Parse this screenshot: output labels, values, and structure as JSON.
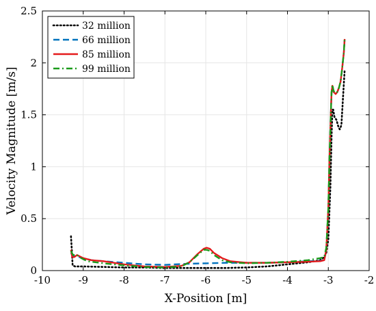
{
  "chart_data": {
    "type": "line",
    "xlabel": "X-Position [m]",
    "ylabel": "Velocity Magnitude [m/s]",
    "xlim": [
      -10,
      -2
    ],
    "ylim": [
      0,
      2.5
    ],
    "xticks": [
      -10,
      -9,
      -8,
      -7,
      -6,
      -5,
      -4,
      -3,
      -2
    ],
    "yticks": [
      0,
      0.5,
      1,
      1.5,
      2,
      2.5
    ],
    "grid": true,
    "legend_position": "top-left",
    "series": [
      {
        "name": "32 million",
        "color": "#000000",
        "style": "dotted",
        "points": [
          [
            -9.3,
            0.33
          ],
          [
            -9.28,
            0.2
          ],
          [
            -9.26,
            0.05
          ],
          [
            -9.2,
            0.04
          ],
          [
            -9.0,
            0.04
          ],
          [
            -8.5,
            0.035
          ],
          [
            -8.0,
            0.03
          ],
          [
            -7.5,
            0.03
          ],
          [
            -7.0,
            0.025
          ],
          [
            -6.5,
            0.025
          ],
          [
            -6.0,
            0.025
          ],
          [
            -5.5,
            0.025
          ],
          [
            -5.0,
            0.03
          ],
          [
            -4.5,
            0.04
          ],
          [
            -4.0,
            0.06
          ],
          [
            -3.5,
            0.08
          ],
          [
            -3.2,
            0.1
          ],
          [
            -3.1,
            0.13
          ],
          [
            -3.05,
            0.17
          ],
          [
            -3.0,
            0.3
          ],
          [
            -2.95,
            0.8
          ],
          [
            -2.92,
            1.3
          ],
          [
            -2.9,
            1.55
          ],
          [
            -2.88,
            1.55
          ],
          [
            -2.85,
            1.48
          ],
          [
            -2.8,
            1.45
          ],
          [
            -2.75,
            1.38
          ],
          [
            -2.72,
            1.36
          ],
          [
            -2.68,
            1.4
          ],
          [
            -2.65,
            1.6
          ],
          [
            -2.62,
            1.8
          ],
          [
            -2.6,
            1.93
          ]
        ]
      },
      {
        "name": "66 million",
        "color": "#0072bd",
        "style": "dashed",
        "points": [
          [
            -9.3,
            0.17
          ],
          [
            -9.25,
            0.14
          ],
          [
            -9.2,
            0.14
          ],
          [
            -9.1,
            0.13
          ],
          [
            -9.0,
            0.12
          ],
          [
            -8.8,
            0.1
          ],
          [
            -8.5,
            0.09
          ],
          [
            -8.0,
            0.075
          ],
          [
            -7.5,
            0.06
          ],
          [
            -7.0,
            0.055
          ],
          [
            -6.5,
            0.065
          ],
          [
            -6.0,
            0.07
          ],
          [
            -5.5,
            0.075
          ],
          [
            -5.0,
            0.075
          ],
          [
            -4.5,
            0.075
          ],
          [
            -4.0,
            0.08
          ],
          [
            -3.5,
            0.09
          ],
          [
            -3.2,
            0.095
          ],
          [
            -3.1,
            0.1
          ],
          [
            -3.05,
            0.2
          ],
          [
            -3.0,
            0.6
          ],
          [
            -2.97,
            1.1
          ],
          [
            -2.94,
            1.5
          ],
          [
            -2.92,
            1.72
          ],
          [
            -2.9,
            1.78
          ],
          [
            -2.87,
            1.72
          ],
          [
            -2.82,
            1.7
          ],
          [
            -2.78,
            1.72
          ],
          [
            -2.74,
            1.76
          ],
          [
            -2.7,
            1.82
          ],
          [
            -2.66,
            1.95
          ],
          [
            -2.62,
            2.1
          ],
          [
            -2.6,
            2.23
          ]
        ]
      },
      {
        "name": "85 million",
        "color": "#e41a1c",
        "style": "solid",
        "points": [
          [
            -9.3,
            0.2
          ],
          [
            -9.27,
            0.13
          ],
          [
            -9.22,
            0.13
          ],
          [
            -9.15,
            0.15
          ],
          [
            -9.1,
            0.14
          ],
          [
            -9.0,
            0.12
          ],
          [
            -8.8,
            0.1
          ],
          [
            -8.5,
            0.09
          ],
          [
            -8.0,
            0.06
          ],
          [
            -7.5,
            0.04
          ],
          [
            -7.0,
            0.035
          ],
          [
            -6.6,
            0.045
          ],
          [
            -6.4,
            0.08
          ],
          [
            -6.2,
            0.16
          ],
          [
            -6.05,
            0.21
          ],
          [
            -5.98,
            0.22
          ],
          [
            -5.9,
            0.21
          ],
          [
            -5.8,
            0.17
          ],
          [
            -5.6,
            0.12
          ],
          [
            -5.4,
            0.09
          ],
          [
            -5.0,
            0.075
          ],
          [
            -4.5,
            0.075
          ],
          [
            -4.0,
            0.08
          ],
          [
            -3.5,
            0.085
          ],
          [
            -3.2,
            0.09
          ],
          [
            -3.1,
            0.1
          ],
          [
            -3.05,
            0.2
          ],
          [
            -3.0,
            0.6
          ],
          [
            -2.97,
            1.1
          ],
          [
            -2.94,
            1.5
          ],
          [
            -2.92,
            1.72
          ],
          [
            -2.9,
            1.78
          ],
          [
            -2.87,
            1.72
          ],
          [
            -2.82,
            1.7
          ],
          [
            -2.78,
            1.72
          ],
          [
            -2.74,
            1.76
          ],
          [
            -2.7,
            1.82
          ],
          [
            -2.66,
            1.95
          ],
          [
            -2.62,
            2.1
          ],
          [
            -2.6,
            2.23
          ]
        ]
      },
      {
        "name": "99 million",
        "color": "#1a9a1a",
        "style": "dashdot",
        "points": [
          [
            -9.3,
            0.19
          ],
          [
            -9.25,
            0.15
          ],
          [
            -9.15,
            0.15
          ],
          [
            -9.05,
            0.12
          ],
          [
            -8.9,
            0.09
          ],
          [
            -8.5,
            0.07
          ],
          [
            -8.0,
            0.05
          ],
          [
            -7.5,
            0.035
          ],
          [
            -7.0,
            0.03
          ],
          [
            -6.6,
            0.04
          ],
          [
            -6.4,
            0.08
          ],
          [
            -6.2,
            0.15
          ],
          [
            -6.05,
            0.2
          ],
          [
            -5.98,
            0.2
          ],
          [
            -5.9,
            0.19
          ],
          [
            -5.8,
            0.15
          ],
          [
            -5.6,
            0.1
          ],
          [
            -5.4,
            0.08
          ],
          [
            -5.0,
            0.07
          ],
          [
            -4.5,
            0.075
          ],
          [
            -4.0,
            0.085
          ],
          [
            -3.5,
            0.1
          ],
          [
            -3.2,
            0.12
          ],
          [
            -3.1,
            0.13
          ],
          [
            -3.05,
            0.22
          ],
          [
            -3.0,
            0.6
          ],
          [
            -2.97,
            1.1
          ],
          [
            -2.94,
            1.5
          ],
          [
            -2.92,
            1.72
          ],
          [
            -2.9,
            1.79
          ],
          [
            -2.87,
            1.73
          ],
          [
            -2.82,
            1.71
          ],
          [
            -2.78,
            1.72
          ],
          [
            -2.74,
            1.76
          ],
          [
            -2.7,
            1.82
          ],
          [
            -2.66,
            1.95
          ],
          [
            -2.62,
            2.1
          ],
          [
            -2.6,
            2.24
          ]
        ]
      }
    ]
  }
}
